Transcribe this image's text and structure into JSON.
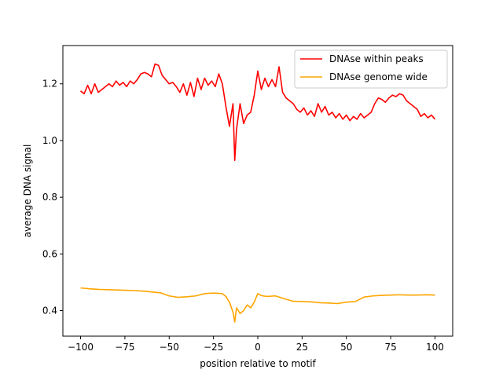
{
  "chart_data": {
    "type": "line",
    "title": "",
    "xlabel": "position relative to motif",
    "ylabel": "average DNA signal",
    "xlim": [
      -110,
      110
    ],
    "ylim": [
      0.31,
      1.335
    ],
    "grid": false,
    "legend_position": "top-right",
    "x_ticks": [
      -100,
      -75,
      -50,
      -25,
      0,
      25,
      50,
      75,
      100
    ],
    "x_tick_labels": [
      "−100",
      "−75",
      "−50",
      "−25",
      "0",
      "25",
      "50",
      "75",
      "100"
    ],
    "y_ticks": [
      0.4,
      0.6,
      0.8,
      1.0,
      1.2
    ],
    "y_tick_labels": [
      "0.4",
      "0.6",
      "0.8",
      "1.0",
      "1.2"
    ],
    "series": [
      {
        "name": "DNAse within peaks",
        "color": "#ff0000",
        "x": [
          -100,
          -98,
          -96,
          -94,
          -92,
          -90,
          -88,
          -86,
          -84,
          -82,
          -80,
          -78,
          -76,
          -74,
          -72,
          -70,
          -68,
          -66,
          -64,
          -62,
          -60,
          -58,
          -56,
          -54,
          -52,
          -50,
          -48,
          -46,
          -44,
          -42,
          -40,
          -38,
          -36,
          -34,
          -32,
          -30,
          -28,
          -26,
          -24,
          -22,
          -20,
          -18,
          -16,
          -14,
          -13,
          -12,
          -10,
          -8,
          -6,
          -4,
          -2,
          0,
          2,
          4,
          6,
          8,
          10,
          12,
          14,
          16,
          18,
          20,
          22,
          24,
          26,
          28,
          30,
          32,
          34,
          36,
          38,
          40,
          42,
          44,
          46,
          48,
          50,
          52,
          54,
          56,
          58,
          60,
          62,
          64,
          66,
          68,
          70,
          72,
          74,
          76,
          78,
          80,
          82,
          84,
          86,
          88,
          90,
          92,
          94,
          96,
          98,
          100
        ],
        "values": [
          1.175,
          1.165,
          1.195,
          1.165,
          1.2,
          1.17,
          1.18,
          1.19,
          1.2,
          1.19,
          1.21,
          1.195,
          1.205,
          1.19,
          1.21,
          1.2,
          1.215,
          1.235,
          1.24,
          1.235,
          1.225,
          1.27,
          1.265,
          1.23,
          1.215,
          1.2,
          1.205,
          1.19,
          1.17,
          1.2,
          1.16,
          1.205,
          1.155,
          1.22,
          1.18,
          1.22,
          1.195,
          1.21,
          1.19,
          1.235,
          1.2,
          1.12,
          1.05,
          1.13,
          0.93,
          1.04,
          1.13,
          1.06,
          1.09,
          1.1,
          1.16,
          1.245,
          1.18,
          1.22,
          1.19,
          1.215,
          1.19,
          1.26,
          1.17,
          1.15,
          1.14,
          1.13,
          1.11,
          1.1,
          1.115,
          1.09,
          1.105,
          1.085,
          1.13,
          1.1,
          1.12,
          1.09,
          1.1,
          1.08,
          1.095,
          1.075,
          1.09,
          1.07,
          1.085,
          1.075,
          1.095,
          1.08,
          1.09,
          1.1,
          1.13,
          1.15,
          1.145,
          1.135,
          1.15,
          1.16,
          1.155,
          1.165,
          1.16,
          1.14,
          1.13,
          1.12,
          1.11,
          1.085,
          1.095,
          1.08,
          1.09,
          1.075
        ]
      },
      {
        "name": "DNAse genome wide",
        "color": "#ffa500",
        "x": [
          -100,
          -95,
          -90,
          -85,
          -80,
          -75,
          -70,
          -65,
          -60,
          -55,
          -50,
          -45,
          -40,
          -35,
          -30,
          -25,
          -20,
          -18,
          -16,
          -14,
          -13,
          -12,
          -10,
          -8,
          -6,
          -4,
          -2,
          0,
          2,
          5,
          10,
          15,
          20,
          25,
          30,
          35,
          40,
          45,
          50,
          55,
          60,
          65,
          70,
          75,
          80,
          85,
          90,
          95,
          100
        ],
        "values": [
          0.48,
          0.477,
          0.475,
          0.474,
          0.473,
          0.472,
          0.471,
          0.469,
          0.466,
          0.463,
          0.452,
          0.447,
          0.449,
          0.452,
          0.46,
          0.462,
          0.46,
          0.45,
          0.43,
          0.395,
          0.36,
          0.41,
          0.39,
          0.4,
          0.42,
          0.41,
          0.43,
          0.46,
          0.453,
          0.45,
          0.452,
          0.442,
          0.433,
          0.432,
          0.431,
          0.428,
          0.427,
          0.425,
          0.43,
          0.432,
          0.448,
          0.452,
          0.454,
          0.455,
          0.456,
          0.455,
          0.455,
          0.456,
          0.455
        ]
      }
    ]
  }
}
